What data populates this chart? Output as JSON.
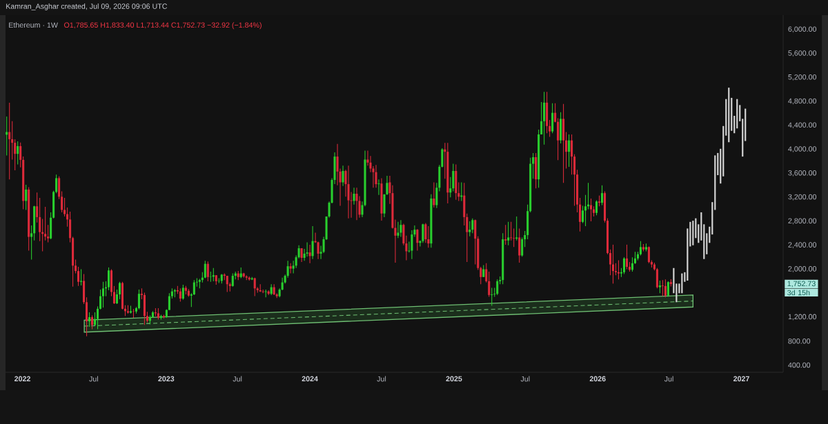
{
  "chart_data": {
    "type": "candlestick",
    "title": "Ethereum · 1W",
    "subtitle": "O1,785.65 H1,833.40 L1,713.44 C1,752.73 −32.92 (−1.84%)",
    "annotations": [
      "Kamran_Asghar created, Jul 09, 2026 09:06 UTC",
      "1,752.73",
      "3d 15h"
    ],
    "xlim": [
      "2021-11-19",
      "2027-04-17"
    ],
    "ylim": [
      280,
      6240
    ],
    "xticks": [
      {
        "value": "2022-01-01",
        "label": "2022"
      },
      {
        "value": "2022-07-01",
        "label": "Jul"
      },
      {
        "value": "2023-01-01",
        "label": "2023"
      },
      {
        "value": "2023-07-01",
        "label": "Jul"
      },
      {
        "value": "2024-01-01",
        "label": "2024"
      },
      {
        "value": "2024-07-01",
        "label": "Jul"
      },
      {
        "value": "2025-01-01",
        "label": "2025"
      },
      {
        "value": "2025-07-01",
        "label": "Jul"
      },
      {
        "value": "2026-01-01",
        "label": "2026"
      },
      {
        "value": "2026-07-01",
        "label": "Jul"
      },
      {
        "value": "2027-01-01",
        "label": "2027"
      }
    ],
    "yticks": [
      {
        "value": 400,
        "label": "400.00"
      },
      {
        "value": 800,
        "label": "800.00"
      },
      {
        "value": 1200,
        "label": "1,200.00"
      },
      {
        "value": 2000,
        "label": "2,000.00"
      },
      {
        "value": 2400,
        "label": "2,400.00"
      },
      {
        "value": 2800,
        "label": "2,800.00"
      },
      {
        "value": 3200,
        "label": "3,200.00"
      },
      {
        "value": 3600,
        "label": "3,600.00"
      },
      {
        "value": 4000,
        "label": "4,000.00"
      },
      {
        "value": 4400,
        "label": "4,400.00"
      },
      {
        "value": 4800,
        "label": "4,800.00"
      },
      {
        "value": 5200,
        "label": "5,200.00"
      },
      {
        "value": 5600,
        "label": "5,600.00"
      },
      {
        "value": 6000,
        "label": "6,000.00"
      }
    ],
    "series": [
      {
        "type": "line",
        "color": "#6fbf73",
        "line_style": "dashed",
        "x": [
          "2022-06-07",
          "2026-08-31"
        ],
        "values": [
          1050,
          1470
        ],
        "lower": [
          950,
          1370
        ],
        "upper": [
          1150,
          1570
        ]
      },
      {
        "x": [
          "2021-11-22",
          "2021-11-29",
          "2021-12-06",
          "2021-12-13",
          "2021-12-20",
          "2021-12-27",
          "2022-01-03",
          "2022-01-10",
          "2022-01-17",
          "2022-01-24",
          "2022-01-31",
          "2022-02-07",
          "2022-02-14",
          "2022-02-21",
          "2022-02-28",
          "2022-03-07",
          "2022-03-14",
          "2022-03-21",
          "2022-03-28",
          "2022-04-04",
          "2022-04-11",
          "2022-04-18",
          "2022-04-25",
          "2022-05-02",
          "2022-05-09",
          "2022-05-16",
          "2022-05-23",
          "2022-05-30",
          "2022-06-06",
          "2022-06-13",
          "2022-06-20",
          "2022-06-27",
          "2022-07-04",
          "2022-07-11",
          "2022-07-18",
          "2022-07-25",
          "2022-08-01",
          "2022-08-08",
          "2022-08-15",
          "2022-08-22",
          "2022-08-29",
          "2022-09-05",
          "2022-09-12",
          "2022-09-19",
          "2022-09-26",
          "2022-10-03",
          "2022-10-10",
          "2022-10-17",
          "2022-10-24",
          "2022-10-31",
          "2022-11-07",
          "2022-11-14",
          "2022-11-21",
          "2022-11-28",
          "2022-12-05",
          "2022-12-12",
          "2022-12-19",
          "2022-12-26",
          "2023-01-02",
          "2023-01-09",
          "2023-01-16",
          "2023-01-23",
          "2023-01-30",
          "2023-02-06",
          "2023-02-13",
          "2023-02-20",
          "2023-02-27",
          "2023-03-06",
          "2023-03-13",
          "2023-03-20",
          "2023-03-27",
          "2023-04-03",
          "2023-04-10",
          "2023-04-17",
          "2023-04-24",
          "2023-05-01",
          "2023-05-08",
          "2023-05-15",
          "2023-05-22",
          "2023-05-29",
          "2023-06-05",
          "2023-06-12",
          "2023-06-19",
          "2023-06-26",
          "2023-07-03",
          "2023-07-10",
          "2023-07-17",
          "2023-07-24",
          "2023-07-31",
          "2023-08-07",
          "2023-08-14",
          "2023-08-21",
          "2023-08-28",
          "2023-09-04",
          "2023-09-11",
          "2023-09-18",
          "2023-09-25",
          "2023-10-02",
          "2023-10-09",
          "2023-10-16",
          "2023-10-23",
          "2023-10-30",
          "2023-11-06",
          "2023-11-13",
          "2023-11-20",
          "2023-11-27",
          "2023-12-04",
          "2023-12-11",
          "2023-12-18",
          "2023-12-25",
          "2024-01-01",
          "2024-01-08",
          "2024-01-15",
          "2024-01-22",
          "2024-01-29",
          "2024-02-05",
          "2024-02-12",
          "2024-02-19",
          "2024-02-26",
          "2024-03-04",
          "2024-03-11",
          "2024-03-18",
          "2024-03-25",
          "2024-04-01",
          "2024-04-08",
          "2024-04-15",
          "2024-04-22",
          "2024-04-29",
          "2024-05-06",
          "2024-05-13",
          "2024-05-20",
          "2024-05-27",
          "2024-06-03",
          "2024-06-10",
          "2024-06-17",
          "2024-06-24",
          "2024-07-01",
          "2024-07-08",
          "2024-07-15",
          "2024-07-22",
          "2024-07-29",
          "2024-08-05",
          "2024-08-12",
          "2024-08-19",
          "2024-08-26",
          "2024-09-02",
          "2024-09-09",
          "2024-09-16",
          "2024-09-23",
          "2024-09-30",
          "2024-10-07",
          "2024-10-14",
          "2024-10-21",
          "2024-10-28",
          "2024-11-04",
          "2024-11-11",
          "2024-11-18",
          "2024-11-25",
          "2024-12-02",
          "2024-12-09",
          "2024-12-16",
          "2024-12-23",
          "2024-12-30",
          "2025-01-06",
          "2025-01-13",
          "2025-01-20",
          "2025-01-27",
          "2025-02-03",
          "2025-02-10",
          "2025-02-17",
          "2025-02-24",
          "2025-03-03",
          "2025-03-10",
          "2025-03-17",
          "2025-03-24",
          "2025-03-31",
          "2025-04-07",
          "2025-04-14",
          "2025-04-21",
          "2025-04-28",
          "2025-05-05",
          "2025-05-12",
          "2025-05-19",
          "2025-05-26",
          "2025-06-02",
          "2025-06-09",
          "2025-06-16",
          "2025-06-23",
          "2025-06-30",
          "2025-07-07",
          "2025-07-14",
          "2025-07-21",
          "2025-07-28",
          "2025-08-04",
          "2025-08-11",
          "2025-08-18",
          "2025-08-25",
          "2025-09-01",
          "2025-09-08",
          "2025-09-15",
          "2025-09-22",
          "2025-09-29",
          "2025-10-06",
          "2025-10-13",
          "2025-10-20",
          "2025-10-27",
          "2025-11-03",
          "2025-11-10",
          "2025-11-17",
          "2025-11-24",
          "2025-12-01",
          "2025-12-08",
          "2025-12-15",
          "2025-12-22",
          "2025-12-29",
          "2026-01-05",
          "2026-01-12",
          "2026-01-19",
          "2026-01-26",
          "2026-02-02",
          "2026-02-09",
          "2026-02-16",
          "2026-02-23",
          "2026-03-02",
          "2026-03-09",
          "2026-03-16",
          "2026-03-23",
          "2026-03-30",
          "2026-04-06",
          "2026-04-13",
          "2026-04-20",
          "2026-04-27",
          "2026-05-04",
          "2026-05-11",
          "2026-05-18",
          "2026-05-25",
          "2026-06-01",
          "2026-06-08",
          "2026-06-15",
          "2026-06-22",
          "2026-06-29",
          "2026-07-06"
        ],
        "ohlc": [
          [
            4245,
            4550,
            3900,
            4290
          ],
          [
            4290,
            4780,
            3500,
            4170
          ],
          [
            4170,
            4470,
            3830,
            4110
          ],
          [
            4110,
            4170,
            3650,
            3925
          ],
          [
            3925,
            4135,
            3750,
            4055
          ],
          [
            4055,
            4115,
            3700,
            3825
          ],
          [
            3825,
            3880,
            3000,
            3140
          ],
          [
            3140,
            3410,
            2990,
            3330
          ],
          [
            3330,
            3370,
            2310,
            2540
          ],
          [
            2540,
            2730,
            2160,
            2600
          ],
          [
            2600,
            3060,
            2480,
            3050
          ],
          [
            3050,
            3280,
            2780,
            2870
          ],
          [
            2870,
            3190,
            2470,
            2620
          ],
          [
            2620,
            2840,
            2300,
            2590
          ],
          [
            2590,
            3040,
            2480,
            2545
          ],
          [
            2545,
            2740,
            2450,
            2515
          ],
          [
            2515,
            2950,
            2500,
            2860
          ],
          [
            2860,
            3310,
            2850,
            3290
          ],
          [
            3290,
            3580,
            3270,
            3520
          ],
          [
            3520,
            3550,
            3170,
            3210
          ],
          [
            3210,
            3300,
            2950,
            2990
          ],
          [
            2990,
            3190,
            2880,
            2920
          ],
          [
            2920,
            3030,
            2710,
            2830
          ],
          [
            2830,
            2960,
            2450,
            2520
          ],
          [
            2520,
            2540,
            1710,
            2060
          ],
          [
            2060,
            2160,
            1930,
            1970
          ],
          [
            1970,
            2040,
            1720,
            1790
          ],
          [
            1790,
            2000,
            1730,
            1805
          ],
          [
            1805,
            1920,
            1420,
            1450
          ],
          [
            1450,
            1530,
            880,
            1130
          ],
          [
            1130,
            1280,
            1040,
            1200
          ],
          [
            1200,
            1230,
            1000,
            1070
          ],
          [
            1070,
            1280,
            1060,
            1170
          ],
          [
            1170,
            1380,
            1000,
            1340
          ],
          [
            1340,
            1660,
            1330,
            1550
          ],
          [
            1550,
            1790,
            1360,
            1680
          ],
          [
            1680,
            1800,
            1550,
            1700
          ],
          [
            1700,
            2030,
            1650,
            1980
          ],
          [
            1980,
            2000,
            1550,
            1620
          ],
          [
            1620,
            1720,
            1420,
            1430
          ],
          [
            1430,
            1660,
            1420,
            1580
          ],
          [
            1580,
            1790,
            1500,
            1770
          ],
          [
            1770,
            1790,
            1330,
            1340
          ],
          [
            1340,
            1400,
            1220,
            1300
          ],
          [
            1300,
            1400,
            1260,
            1275
          ],
          [
            1275,
            1390,
            1260,
            1300
          ],
          [
            1300,
            1340,
            1190,
            1295
          ],
          [
            1295,
            1370,
            1260,
            1350
          ],
          [
            1350,
            1660,
            1330,
            1590
          ],
          [
            1590,
            1680,
            1500,
            1570
          ],
          [
            1570,
            1610,
            1070,
            1220
          ],
          [
            1220,
            1290,
            1110,
            1140
          ],
          [
            1140,
            1230,
            1080,
            1200
          ],
          [
            1200,
            1300,
            1190,
            1280
          ],
          [
            1280,
            1350,
            1220,
            1265
          ],
          [
            1265,
            1350,
            1160,
            1190
          ],
          [
            1190,
            1240,
            1160,
            1220
          ],
          [
            1220,
            1240,
            1180,
            1200
          ],
          [
            1200,
            1330,
            1190,
            1320
          ],
          [
            1320,
            1600,
            1320,
            1550
          ],
          [
            1550,
            1680,
            1510,
            1630
          ],
          [
            1630,
            1670,
            1530,
            1650
          ],
          [
            1650,
            1720,
            1590,
            1630
          ],
          [
            1630,
            1680,
            1460,
            1510
          ],
          [
            1510,
            1740,
            1490,
            1690
          ],
          [
            1690,
            1720,
            1580,
            1640
          ],
          [
            1640,
            1670,
            1540,
            1560
          ],
          [
            1560,
            1600,
            1370,
            1580
          ],
          [
            1580,
            1820,
            1570,
            1780
          ],
          [
            1780,
            1850,
            1710,
            1790
          ],
          [
            1790,
            1840,
            1680,
            1820
          ],
          [
            1820,
            1950,
            1780,
            1860
          ],
          [
            1860,
            2140,
            1850,
            2090
          ],
          [
            2090,
            2130,
            1800,
            1870
          ],
          [
            1870,
            1960,
            1790,
            1875
          ],
          [
            1875,
            2020,
            1800,
            1900
          ],
          [
            1900,
            1900,
            1740,
            1800
          ],
          [
            1800,
            1850,
            1770,
            1805
          ],
          [
            1805,
            1920,
            1760,
            1910
          ],
          [
            1910,
            1930,
            1820,
            1890
          ],
          [
            1890,
            1890,
            1620,
            1750
          ],
          [
            1750,
            1780,
            1630,
            1720
          ],
          [
            1720,
            1930,
            1710,
            1890
          ],
          [
            1890,
            1960,
            1830,
            1930
          ],
          [
            1930,
            1970,
            1820,
            1870
          ],
          [
            1870,
            2030,
            1850,
            1930
          ],
          [
            1930,
            1940,
            1860,
            1880
          ],
          [
            1880,
            1900,
            1820,
            1860
          ],
          [
            1860,
            1880,
            1810,
            1830
          ],
          [
            1830,
            1870,
            1820,
            1850
          ],
          [
            1850,
            1860,
            1550,
            1680
          ],
          [
            1680,
            1700,
            1610,
            1650
          ],
          [
            1650,
            1750,
            1620,
            1630
          ],
          [
            1630,
            1660,
            1600,
            1620
          ],
          [
            1620,
            1660,
            1530,
            1630
          ],
          [
            1630,
            1650,
            1570,
            1590
          ],
          [
            1590,
            1750,
            1570,
            1700
          ],
          [
            1700,
            1750,
            1570,
            1580
          ],
          [
            1580,
            1600,
            1520,
            1550
          ],
          [
            1550,
            1680,
            1530,
            1660
          ],
          [
            1660,
            1860,
            1650,
            1780
          ],
          [
            1780,
            1910,
            1760,
            1890
          ],
          [
            1890,
            2140,
            1860,
            2050
          ],
          [
            2050,
            2100,
            1930,
            2010
          ],
          [
            2010,
            2140,
            1930,
            2060
          ],
          [
            2060,
            2230,
            2020,
            2200
          ],
          [
            2200,
            2400,
            2180,
            2350
          ],
          [
            2350,
            2350,
            2120,
            2190
          ],
          [
            2190,
            2340,
            2140,
            2260
          ],
          [
            2260,
            2450,
            2210,
            2280
          ],
          [
            2280,
            2410,
            2100,
            2220
          ],
          [
            2220,
            2720,
            2170,
            2470
          ],
          [
            2470,
            2610,
            2440,
            2450
          ],
          [
            2450,
            2460,
            2170,
            2260
          ],
          [
            2260,
            2390,
            2170,
            2290
          ],
          [
            2290,
            2540,
            2270,
            2500
          ],
          [
            2500,
            2880,
            2490,
            2880
          ],
          [
            2880,
            3130,
            2860,
            3110
          ],
          [
            3110,
            3520,
            3100,
            3490
          ],
          [
            3490,
            3950,
            3420,
            3880
          ],
          [
            3880,
            4090,
            3400,
            3630
          ],
          [
            3630,
            3680,
            3060,
            3450
          ],
          [
            3450,
            3730,
            3390,
            3640
          ],
          [
            3640,
            3660,
            3210,
            3420
          ],
          [
            3420,
            3730,
            2850,
            3150
          ],
          [
            3150,
            3290,
            2860,
            3140
          ],
          [
            3140,
            3360,
            3080,
            3260
          ],
          [
            3260,
            3360,
            2820,
            3140
          ],
          [
            3140,
            3220,
            2860,
            2910
          ],
          [
            2910,
            3130,
            2870,
            3070
          ],
          [
            3070,
            3980,
            3050,
            3830
          ],
          [
            3830,
            3980,
            3730,
            3780
          ],
          [
            3780,
            3890,
            3620,
            3680
          ],
          [
            3680,
            3720,
            3360,
            3620
          ],
          [
            3620,
            3740,
            3360,
            3420
          ],
          [
            3420,
            3500,
            3240,
            3430
          ],
          [
            3430,
            3520,
            2810,
            2930
          ],
          [
            2930,
            3250,
            2870,
            3250
          ],
          [
            3250,
            3560,
            3240,
            3440
          ],
          [
            3450,
            3560,
            3090,
            3270
          ],
          [
            3270,
            3400,
            2680,
            2690
          ],
          [
            2690,
            2830,
            2110,
            2560
          ],
          [
            2560,
            2790,
            2520,
            2610
          ],
          [
            2610,
            2820,
            2540,
            2740
          ],
          [
            2740,
            2760,
            2400,
            2430
          ],
          [
            2430,
            2560,
            2150,
            2300
          ],
          [
            2300,
            2460,
            2280,
            2310
          ],
          [
            2310,
            2650,
            2170,
            2580
          ],
          [
            2580,
            2730,
            2540,
            2660
          ],
          [
            2660,
            2670,
            2310,
            2440
          ],
          [
            2440,
            2480,
            2380,
            2470
          ],
          [
            2470,
            2760,
            2440,
            2750
          ],
          [
            2750,
            2770,
            2440,
            2500
          ],
          [
            2500,
            2720,
            2360,
            2430
          ],
          [
            2430,
            3250,
            2360,
            3180
          ],
          [
            3180,
            3450,
            3030,
            3070
          ],
          [
            3070,
            3440,
            3020,
            3360
          ],
          [
            3360,
            3740,
            3300,
            3710
          ],
          [
            3710,
            4020,
            3700,
            4000
          ],
          [
            4000,
            4110,
            3510,
            3960
          ],
          [
            3960,
            4110,
            3100,
            3280
          ],
          [
            3280,
            3540,
            3200,
            3350
          ],
          [
            3350,
            3760,
            3300,
            3640
          ],
          [
            3640,
            3750,
            3160,
            3270
          ],
          [
            3270,
            3450,
            3140,
            3210
          ],
          [
            3210,
            3450,
            3140,
            3230
          ],
          [
            3230,
            3440,
            2730,
            2870
          ],
          [
            2870,
            2930,
            2120,
            2620
          ],
          [
            2620,
            2800,
            2550,
            2660
          ],
          [
            2660,
            2850,
            2600,
            2820
          ],
          [
            2820,
            2830,
            2080,
            2510
          ],
          [
            2510,
            2550,
            1990,
            2020
          ],
          [
            2020,
            2040,
            1750,
            1870
          ],
          [
            1870,
            2070,
            1870,
            2000
          ],
          [
            2000,
            2100,
            1780,
            1800
          ],
          [
            1800,
            1960,
            1540,
            1570
          ],
          [
            1570,
            1690,
            1390,
            1580
          ],
          [
            1580,
            1690,
            1540,
            1590
          ],
          [
            1590,
            1830,
            1570,
            1800
          ],
          [
            1800,
            1880,
            1750,
            1820
          ],
          [
            1820,
            2600,
            1750,
            2500
          ],
          [
            2500,
            2740,
            2410,
            2480
          ],
          [
            2480,
            2790,
            2400,
            2530
          ],
          [
            2530,
            2790,
            2480,
            2520
          ],
          [
            2520,
            2680,
            2370,
            2510
          ],
          [
            2510,
            2880,
            2480,
            2530
          ],
          [
            2530,
            2680,
            2110,
            2230
          ],
          [
            2230,
            2530,
            2210,
            2500
          ],
          [
            2500,
            2640,
            2370,
            2570
          ],
          [
            2570,
            3080,
            2500,
            2970
          ],
          [
            2970,
            3860,
            2950,
            3760
          ],
          [
            3760,
            3940,
            3510,
            3870
          ],
          [
            3870,
            3940,
            3350,
            3500
          ],
          [
            3500,
            4330,
            3360,
            4250
          ],
          [
            4250,
            4790,
            4250,
            4470
          ],
          [
            4470,
            4960,
            4080,
            4780
          ],
          [
            4780,
            4960,
            4270,
            4390
          ],
          [
            4390,
            4490,
            4210,
            4300
          ],
          [
            4300,
            4770,
            4270,
            4610
          ],
          [
            4610,
            4770,
            4450,
            4460
          ],
          [
            4460,
            4520,
            3820,
            4150
          ],
          [
            4150,
            4620,
            4100,
            4510
          ],
          [
            4510,
            4760,
            3440,
            4150
          ],
          [
            4150,
            4290,
            3680,
            3960
          ],
          [
            3960,
            4250,
            3710,
            4150
          ],
          [
            4150,
            4250,
            3580,
            3880
          ],
          [
            3880,
            3920,
            3060,
            3580
          ],
          [
            3580,
            3660,
            2950,
            3080
          ],
          [
            3080,
            3190,
            2630,
            2790
          ],
          [
            2790,
            3060,
            2770,
            2980
          ],
          [
            2980,
            3240,
            2720,
            3050
          ],
          [
            3050,
            3440,
            3000,
            3080
          ],
          [
            3070,
            3180,
            2800,
            3000
          ],
          [
            3000,
            3050,
            2880,
            2940
          ],
          [
            2940,
            3150,
            2900,
            3130
          ],
          [
            3130,
            3230,
            3050,
            3110
          ],
          [
            3110,
            3400,
            3070,
            3270
          ],
          [
            3270,
            3300,
            2780,
            2810
          ],
          [
            2810,
            2850,
            2250,
            2270
          ],
          [
            2270,
            2330,
            1900,
            2080
          ],
          [
            2080,
            2410,
            1760,
            1970
          ],
          [
            1970,
            2100,
            1900,
            1950
          ],
          [
            1950,
            2150,
            1830,
            1930
          ],
          [
            1930,
            2020,
            1870,
            1950
          ],
          [
            1950,
            2200,
            1920,
            2180
          ],
          [
            2180,
            2410,
            2000,
            2040
          ],
          [
            2040,
            2120,
            1960,
            1990
          ],
          [
            1990,
            2200,
            1960,
            2100
          ],
          [
            2100,
            2290,
            2090,
            2180
          ],
          [
            2180,
            2290,
            2150,
            2250
          ],
          [
            2250,
            2470,
            2230,
            2370
          ],
          [
            2370,
            2420,
            2300,
            2330
          ],
          [
            2330,
            2430,
            2300,
            2370
          ],
          [
            2370,
            2380,
            2100,
            2120
          ],
          [
            2120,
            2150,
            2030,
            2080
          ],
          [
            2080,
            2110,
            1980,
            2000
          ],
          [
            2000,
            2020,
            1680,
            1700
          ],
          [
            1700,
            1810,
            1600,
            1730
          ],
          [
            1730,
            1820,
            1550,
            1720
          ],
          [
            1720,
            1830,
            1530,
            1560
          ],
          [
            1560,
            1800,
            1540,
            1785
          ],
          [
            1785.65,
            1833.4,
            1713.44,
            1752.73
          ]
        ],
        "colors": [
          "#29cf2e",
          "#dd2a3a",
          "#dd2a3a",
          "#dd2a3a",
          "#29cf2e",
          "#dd2a3a",
          "#dd2a3a",
          "#29cf2e",
          "#dd2a3a",
          "#29cf2e",
          "#29cf2e",
          "#dd2a3a",
          "#dd2a3a",
          "#dd2a3a",
          "#dd2a3a",
          "#dd2a3a",
          "#29cf2e",
          "#29cf2e",
          "#29cf2e",
          "#dd2a3a",
          "#dd2a3a",
          "#dd2a3a",
          "#dd2a3a",
          "#dd2a3a",
          "#dd2a3a",
          "#dd2a3a",
          "#dd2a3a",
          "#29cf2e",
          "#dd2a3a",
          "#dd2a3a",
          "#29cf2e",
          "#dd2a3a",
          "#29cf2e",
          "#29cf2e",
          "#29cf2e",
          "#29cf2e",
          "#29cf2e",
          "#29cf2e",
          "#dd2a3a",
          "#dd2a3a",
          "#29cf2e",
          "#29cf2e",
          "#dd2a3a",
          "#dd2a3a",
          "#dd2a3a",
          "#29cf2e",
          "#dd2a3a",
          "#29cf2e",
          "#29cf2e",
          "#dd2a3a",
          "#dd2a3a",
          "#dd2a3a",
          "#29cf2e",
          "#29cf2e",
          "#dd2a3a",
          "#dd2a3a",
          "#29cf2e",
          "#dd2a3a",
          "#29cf2e",
          "#29cf2e",
          "#29cf2e",
          "#29cf2e",
          "#dd2a3a",
          "#dd2a3a",
          "#29cf2e",
          "#dd2a3a",
          "#dd2a3a",
          "#29cf2e",
          "#29cf2e",
          "#29cf2e",
          "#29cf2e",
          "#29cf2e",
          "#29cf2e",
          "#dd2a3a",
          "#29cf2e",
          "#29cf2e",
          "#dd2a3a",
          "#29cf2e",
          "#29cf2e",
          "#dd2a3a",
          "#dd2a3a",
          "#dd2a3a",
          "#29cf2e",
          "#29cf2e",
          "#dd2a3a",
          "#29cf2e",
          "#dd2a3a",
          "#dd2a3a",
          "#dd2a3a",
          "#29cf2e",
          "#dd2a3a",
          "#dd2a3a",
          "#dd2a3a",
          "#dd2a3a",
          "#29cf2e",
          "#dd2a3a",
          "#29cf2e",
          "#dd2a3a",
          "#dd2a3a",
          "#29cf2e",
          "#29cf2e",
          "#29cf2e",
          "#29cf2e",
          "#dd2a3a",
          "#29cf2e",
          "#29cf2e",
          "#29cf2e",
          "#dd2a3a",
          "#29cf2e",
          "#29cf2e",
          "#dd2a3a",
          "#29cf2e",
          "#dd2a3a",
          "#dd2a3a",
          "#29cf2e",
          "#29cf2e",
          "#29cf2e",
          "#29cf2e",
          "#29cf2e",
          "#29cf2e",
          "#dd2a3a",
          "#dd2a3a",
          "#29cf2e",
          "#dd2a3a",
          "#dd2a3a",
          "#dd2a3a",
          "#29cf2e",
          "#dd2a3a",
          "#dd2a3a",
          "#29cf2e",
          "#29cf2e",
          "#dd2a3a",
          "#dd2a3a",
          "#dd2a3a",
          "#dd2a3a",
          "#29cf2e",
          "#dd2a3a",
          "#29cf2e",
          "#29cf2e",
          "#dd2a3a",
          "#dd2a3a",
          "#dd2a3a",
          "#29cf2e",
          "#29cf2e",
          "#dd2a3a",
          "#dd2a3a",
          "#29cf2e",
          "#29cf2e",
          "#29cf2e",
          "#dd2a3a",
          "#29cf2e",
          "#29cf2e",
          "#dd2a3a",
          "#dd2a3a",
          "#29cf2e",
          "#dd2a3a",
          "#29cf2e",
          "#29cf2e",
          "#29cf2e",
          "#dd2a3a",
          "#dd2a3a",
          "#29cf2e",
          "#29cf2e",
          "#dd2a3a",
          "#dd2a3a",
          "#29cf2e",
          "#dd2a3a",
          "#dd2a3a",
          "#29cf2e",
          "#29cf2e",
          "#dd2a3a",
          "#dd2a3a",
          "#dd2a3a",
          "#29cf2e",
          "#dd2a3a",
          "#dd2a3a",
          "#29cf2e",
          "#29cf2e",
          "#29cf2e",
          "#29cf2e",
          "#29cf2e",
          "#dd2a3a",
          "#29cf2e",
          "#dd2a3a",
          "#dd2a3a",
          "#29cf2e",
          "#dd2a3a",
          "#29cf2e",
          "#29cf2e",
          "#29cf2e",
          "#29cf2e",
          "#29cf2e",
          "#dd2a3a",
          "#29cf2e",
          "#29cf2e",
          "#29cf2e",
          "#dd2a3a",
          "#dd2a3a",
          "#29cf2e",
          "#dd2a3a",
          "#dd2a3a",
          "#29cf2e",
          "#dd2a3a",
          "#dd2a3a",
          "#29cf2e",
          "#dd2a3a",
          "#dd2a3a",
          "#dd2a3a",
          "#dd2a3a",
          "#29cf2e",
          "#29cf2e",
          "#29cf2e",
          "#dd2a3a",
          "#dd2a3a",
          "#29cf2e",
          "#dd2a3a",
          "#29cf2e",
          "#dd2a3a",
          "#dd2a3a",
          "#dd2a3a",
          "#dd2a3a",
          "#dd2a3a",
          "#dd2a3a",
          "#29cf2e",
          "#29cf2e",
          "#dd2a3a",
          "#dd2a3a",
          "#29cf2e",
          "#29cf2e",
          "#29cf2e",
          "#29cf2e",
          "#dd2a3a",
          "#29cf2e",
          "#dd2a3a",
          "#dd2a3a",
          "#dd2a3a",
          "#dd2a3a",
          "#29cf2e",
          "#dd2a3a",
          "#dd2a3a",
          "#29cf2e",
          "#dd2a3a"
        ]
      },
      {
        "type": "bar",
        "color": "#d6d6d6",
        "x": [
          "2026-07-13",
          "2026-07-20",
          "2026-07-27",
          "2026-08-03",
          "2026-08-10",
          "2026-08-17",
          "2026-08-24",
          "2026-08-31",
          "2026-09-07",
          "2026-09-14",
          "2026-09-21",
          "2026-09-28",
          "2026-10-05",
          "2026-10-12",
          "2026-10-19",
          "2026-10-26",
          "2026-11-02",
          "2026-11-09",
          "2026-11-16",
          "2026-11-23",
          "2026-11-30",
          "2026-12-07",
          "2026-12-14",
          "2026-12-21",
          "2026-12-28",
          "2027-01-04",
          "2027-01-11"
        ],
        "base": [
          1600,
          1450,
          1600,
          1600,
          1790,
          1810,
          2380,
          2400,
          2520,
          2440,
          2480,
          2170,
          2250,
          2440,
          2580,
          2990,
          3570,
          3430,
          3550,
          4230,
          4120,
          4310,
          4270,
          4350,
          4470,
          3880,
          4140
        ],
        "values": [
          420,
          310,
          160,
          330,
          160,
          870,
          410,
          410,
          330,
          310,
          470,
          580,
          350,
          270,
          540,
          910,
          370,
          580,
          840,
          610,
          910,
          550,
          290,
          490,
          270,
          630,
          540
        ]
      }
    ]
  }
}
